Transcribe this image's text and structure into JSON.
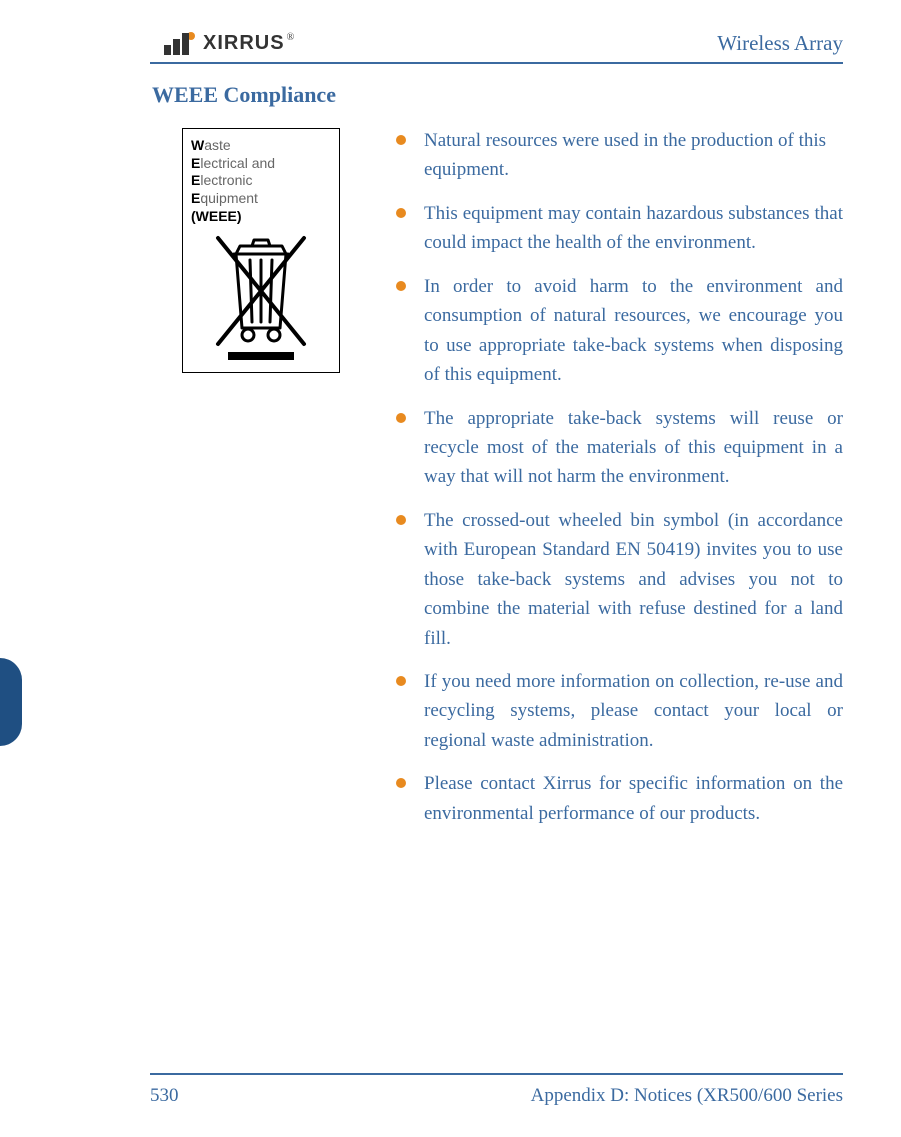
{
  "colors": {
    "accent_blue": "#3b6aa0",
    "accent_orange": "#e88a1f",
    "side_tab": "#1f4f82",
    "text": "#333333",
    "weee_gray": "#666666",
    "background": "#ffffff"
  },
  "header": {
    "logo_text": "XIRRUS",
    "registered": "®",
    "doc_title": "Wireless Array"
  },
  "section": {
    "title": "WEEE Compliance"
  },
  "weee_box": {
    "lines": [
      {
        "lead": "W",
        "rest": "aste"
      },
      {
        "lead": "E",
        "rest": "lectrical and"
      },
      {
        "lead": "E",
        "rest": "lectronic"
      },
      {
        "lead": "E",
        "rest": "quipment"
      }
    ],
    "paren": "(WEEE)",
    "icon": "crossed-out-wheeled-bin"
  },
  "bullets": [
    "Natural resources were used in the production of this equipment.",
    "This equipment may contain hazardous substances that could impact the health of the environment.",
    "In order to avoid harm to the environment and consumption of natural resources, we encourage you to use appropriate take-back systems when disposing of this equipment.",
    "The appropriate take-back systems will reuse or recycle most of the materials of this equipment in a way that will not harm the environment.",
    "The crossed-out wheeled bin symbol (in accordance with European Standard EN 50419) invites you to use those take-back systems and advises you not to combine the material with refuse destined for a land fill.",
    "If you need more information on collection, re-use and recycling systems, please contact your local or regional waste administration.",
    "Please contact Xirrus for specific information on the environmental performance of our products."
  ],
  "bullet_justify": [
    false,
    true,
    true,
    true,
    true,
    true,
    true
  ],
  "footer": {
    "page_number": "530",
    "appendix": "Appendix D: Notices (XR500/600 Series"
  }
}
